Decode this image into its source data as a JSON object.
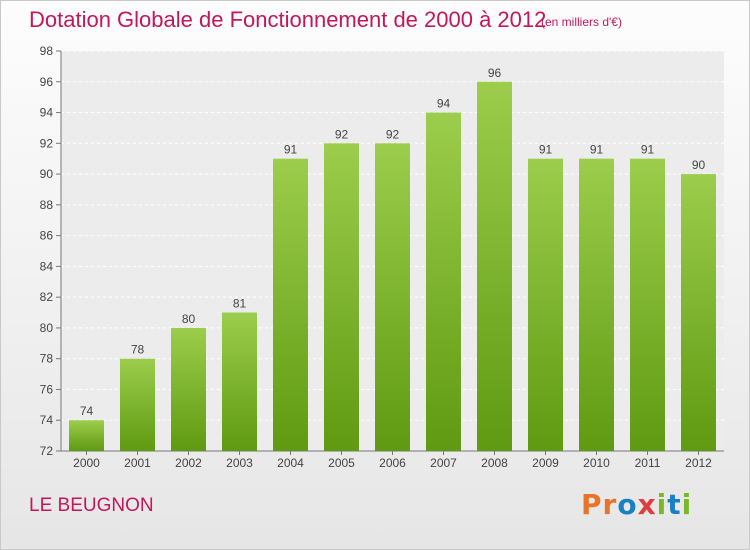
{
  "header": {
    "title": "Dotation Globale de Fonctionnement de 2000 à 2012",
    "subtitle": "(en milliers d'€)"
  },
  "footer": {
    "place": "LE BEUGNON",
    "logo": "Proxiti"
  },
  "colors": {
    "title": "#c2185b",
    "bar_top": "#9ccd4c",
    "bar_bottom": "#5f9a12",
    "logo_letters": [
      "#e8742a",
      "#e8742a",
      "#1b7fc4",
      "#e23b3b",
      "#7ab829",
      "#1b7fc4",
      "#7ab829"
    ]
  },
  "chart_data": {
    "type": "bar",
    "categories": [
      "2000",
      "2001",
      "2002",
      "2003",
      "2004",
      "2005",
      "2006",
      "2007",
      "2008",
      "2009",
      "2010",
      "2011",
      "2012"
    ],
    "values": [
      74,
      78,
      80,
      81,
      91,
      92,
      92,
      94,
      96,
      91,
      91,
      91,
      90
    ],
    "ylim": [
      72,
      98
    ],
    "yticks": [
      72,
      74,
      76,
      78,
      80,
      82,
      84,
      86,
      88,
      90,
      92,
      94,
      96,
      98
    ],
    "grid": true
  }
}
